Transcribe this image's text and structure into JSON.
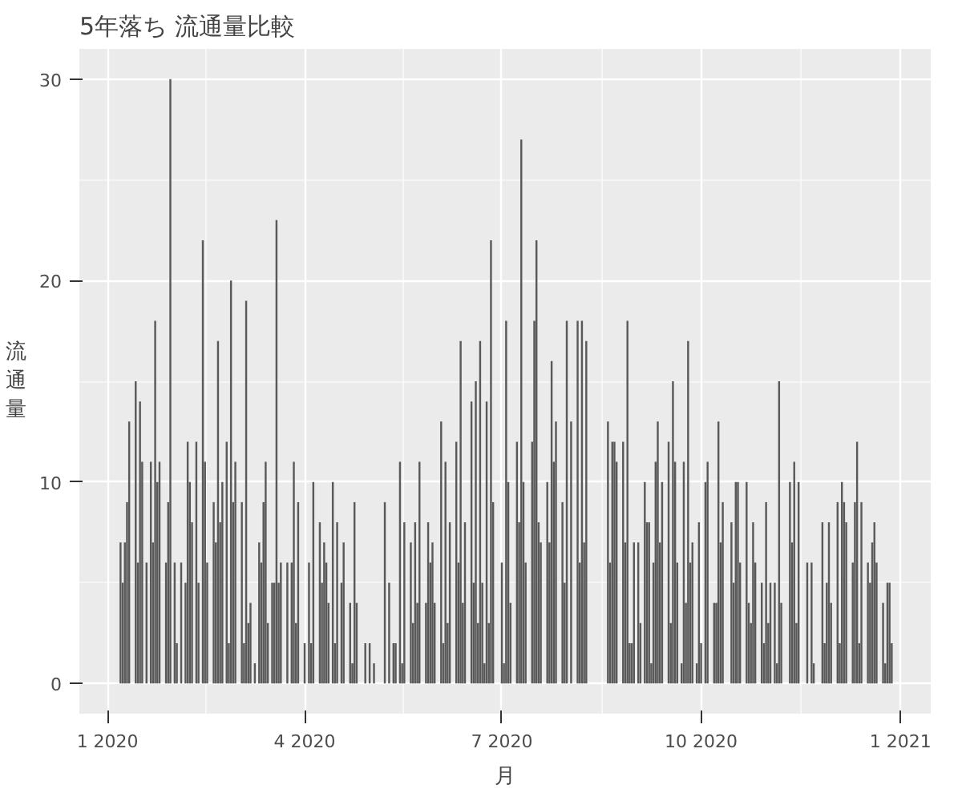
{
  "chart_data": {
    "type": "bar",
    "title": "5年落ち 流通量比較",
    "xlabel": "月",
    "ylabel": "流通量",
    "color": "#595959",
    "grid": true,
    "x": [
      "2020-01-07",
      "2020-01-08",
      "2020-01-09",
      "2020-01-10",
      "2020-01-11",
      "2020-01-14",
      "2020-01-15",
      "2020-01-16",
      "2020-01-17",
      "2020-01-19",
      "2020-01-21",
      "2020-01-22",
      "2020-01-23",
      "2020-01-24",
      "2020-01-25",
      "2020-01-28",
      "2020-01-29",
      "2020-01-30",
      "2020-02-01",
      "2020-02-02",
      "2020-02-04",
      "2020-02-06",
      "2020-02-07",
      "2020-02-08",
      "2020-02-09",
      "2020-02-11",
      "2020-02-12",
      "2020-02-14",
      "2020-02-15",
      "2020-02-16",
      "2020-02-19",
      "2020-02-20",
      "2020-02-21",
      "2020-02-22",
      "2020-02-23",
      "2020-02-25",
      "2020-02-26",
      "2020-02-27",
      "2020-02-28",
      "2020-02-29",
      "2020-03-03",
      "2020-03-04",
      "2020-03-05",
      "2020-03-06",
      "2020-03-07",
      "2020-03-09",
      "2020-03-11",
      "2020-03-12",
      "2020-03-13",
      "2020-03-14",
      "2020-03-15",
      "2020-03-17",
      "2020-03-18",
      "2020-03-19",
      "2020-03-20",
      "2020-03-21",
      "2020-03-24",
      "2020-03-26",
      "2020-03-27",
      "2020-03-28",
      "2020-03-29",
      "2020-04-01",
      "2020-04-03",
      "2020-04-04",
      "2020-04-05",
      "2020-04-08",
      "2020-04-09",
      "2020-04-10",
      "2020-04-11",
      "2020-04-12",
      "2020-04-14",
      "2020-04-15",
      "2020-04-16",
      "2020-04-18",
      "2020-04-19",
      "2020-04-22",
      "2020-04-23",
      "2020-04-24",
      "2020-04-25",
      "2020-04-29",
      "2020-05-01",
      "2020-05-03",
      "2020-05-08",
      "2020-05-10",
      "2020-05-12",
      "2020-05-13",
      "2020-05-15",
      "2020-05-16",
      "2020-05-17",
      "2020-05-20",
      "2020-05-21",
      "2020-05-22",
      "2020-05-23",
      "2020-05-24",
      "2020-05-27",
      "2020-05-28",
      "2020-05-29",
      "2020-05-30",
      "2020-05-31",
      "2020-06-03",
      "2020-06-04",
      "2020-06-05",
      "2020-06-06",
      "2020-06-07",
      "2020-06-10",
      "2020-06-11",
      "2020-06-12",
      "2020-06-13",
      "2020-06-14",
      "2020-06-17",
      "2020-06-18",
      "2020-06-19",
      "2020-06-20",
      "2020-06-21",
      "2020-06-22",
      "2020-06-23",
      "2020-06-24",
      "2020-06-25",
      "2020-06-26",
      "2020-06-27",
      "2020-07-01",
      "2020-07-02",
      "2020-07-03",
      "2020-07-04",
      "2020-07-05",
      "2020-07-08",
      "2020-07-09",
      "2020-07-10",
      "2020-07-11",
      "2020-07-12",
      "2020-07-15",
      "2020-07-16",
      "2020-07-17",
      "2020-07-18",
      "2020-07-19",
      "2020-07-22",
      "2020-07-23",
      "2020-07-24",
      "2020-07-25",
      "2020-07-26",
      "2020-07-29",
      "2020-07-30",
      "2020-07-31",
      "2020-08-02",
      "2020-08-05",
      "2020-08-06",
      "2020-08-07",
      "2020-08-08",
      "2020-08-09",
      "2020-08-19",
      "2020-08-20",
      "2020-08-21",
      "2020-08-22",
      "2020-08-23",
      "2020-08-26",
      "2020-08-27",
      "2020-08-28",
      "2020-08-29",
      "2020-08-30",
      "2020-08-31",
      "2020-09-02",
      "2020-09-03",
      "2020-09-05",
      "2020-09-06",
      "2020-09-07",
      "2020-09-08",
      "2020-09-09",
      "2020-09-10",
      "2020-09-11",
      "2020-09-12",
      "2020-09-13",
      "2020-09-16",
      "2020-09-17",
      "2020-09-18",
      "2020-09-19",
      "2020-09-20",
      "2020-09-22",
      "2020-09-23",
      "2020-09-24",
      "2020-09-25",
      "2020-09-26",
      "2020-09-27",
      "2020-09-29",
      "2020-09-30",
      "2020-10-01",
      "2020-10-03",
      "2020-10-04",
      "2020-10-07",
      "2020-10-08",
      "2020-10-09",
      "2020-10-10",
      "2020-10-11",
      "2020-10-15",
      "2020-10-16",
      "2020-10-17",
      "2020-10-18",
      "2020-10-19",
      "2020-10-22",
      "2020-10-23",
      "2020-10-24",
      "2020-10-25",
      "2020-10-26",
      "2020-10-29",
      "2020-10-30",
      "2020-10-31",
      "2020-11-01",
      "2020-11-02",
      "2020-11-04",
      "2020-11-05",
      "2020-11-06",
      "2020-11-07",
      "2020-11-11",
      "2020-11-12",
      "2020-11-13",
      "2020-11-14",
      "2020-11-15",
      "2020-11-19",
      "2020-11-21",
      "2020-11-22",
      "2020-11-26",
      "2020-11-27",
      "2020-11-28",
      "2020-11-29",
      "2020-11-30",
      "2020-12-03",
      "2020-12-04",
      "2020-12-05",
      "2020-12-06",
      "2020-12-07",
      "2020-12-10",
      "2020-12-11",
      "2020-12-12",
      "2020-12-13",
      "2020-12-14",
      "2020-12-17",
      "2020-12-18",
      "2020-12-19",
      "2020-12-20",
      "2020-12-21",
      "2020-12-24",
      "2020-12-25",
      "2020-12-26",
      "2020-12-27",
      "2020-12-28"
    ],
    "values": [
      7,
      5,
      7,
      9,
      13,
      15,
      6,
      14,
      11,
      6,
      11,
      7,
      18,
      10,
      11,
      6,
      9,
      30,
      6,
      2,
      6,
      5,
      12,
      10,
      8,
      12,
      5,
      22,
      11,
      6,
      9,
      7,
      17,
      8,
      10,
      12,
      2,
      20,
      9,
      11,
      9,
      2,
      19,
      3,
      4,
      1,
      7,
      6,
      9,
      11,
      3,
      5,
      5,
      23,
      5,
      6,
      6,
      6,
      11,
      3,
      9,
      2,
      6,
      2,
      10,
      8,
      5,
      7,
      6,
      4,
      10,
      2,
      8,
      5,
      7,
      4,
      1,
      9,
      4,
      2,
      2,
      1,
      9,
      5,
      2,
      2,
      11,
      1,
      8,
      7,
      3,
      8,
      4,
      11,
      4,
      8,
      6,
      7,
      4,
      13,
      2,
      11,
      3,
      8,
      12,
      6,
      17,
      4,
      8,
      14,
      5,
      15,
      3,
      17,
      5,
      1,
      14,
      3,
      22,
      9,
      6,
      1,
      18,
      10,
      4,
      12,
      8,
      27,
      10,
      6,
      12,
      18,
      22,
      8,
      7,
      10,
      7,
      16,
      11,
      13,
      9,
      5,
      18,
      13,
      18,
      6,
      18,
      7,
      17,
      13,
      6,
      12,
      12,
      11,
      12,
      7,
      18,
      2,
      2,
      7,
      7,
      3,
      10,
      8,
      8,
      1,
      6,
      11,
      13,
      7,
      10,
      12,
      3,
      15,
      11,
      6,
      1,
      11,
      4,
      17,
      6,
      7,
      1,
      8,
      2,
      10,
      11,
      4,
      4,
      13,
      7,
      9,
      8,
      5,
      10,
      10,
      6,
      10,
      4,
      3,
      8,
      6,
      5,
      2,
      9,
      3,
      5,
      5,
      1,
      15,
      4,
      10,
      7,
      11,
      3,
      10,
      6,
      6,
      1,
      8,
      2,
      5,
      8,
      4,
      9,
      2,
      10,
      9,
      8,
      6,
      9,
      12,
      2,
      9,
      6,
      5,
      7,
      8,
      6,
      4,
      1,
      5,
      5,
      2
    ],
    "xlim": [
      "2019-12-19",
      "2021-01-15"
    ],
    "ylim": [
      -1.5,
      31.5
    ],
    "yticks": [
      0,
      10,
      20,
      30
    ],
    "xticks": [
      {
        "value": "2020-01-01",
        "label": "1 2020"
      },
      {
        "value": "2020-04-01",
        "label": "4 2020"
      },
      {
        "value": "2020-07-01",
        "label": "7 2020"
      },
      {
        "value": "2020-10-01",
        "label": "10 2020"
      },
      {
        "value": "2021-01-01",
        "label": "1 2021"
      }
    ]
  }
}
